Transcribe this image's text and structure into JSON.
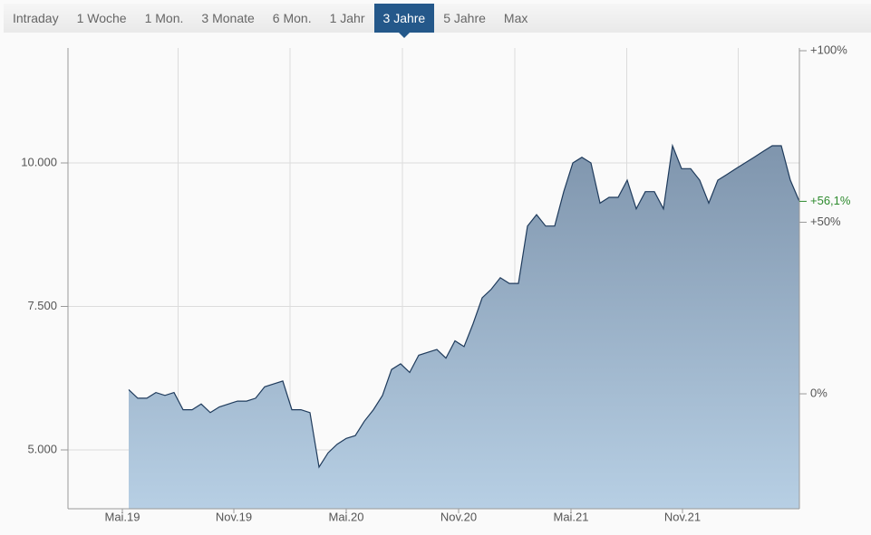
{
  "tabs": [
    "Intraday",
    "1 Woche",
    "1 Mon.",
    "3 Monate",
    "6 Mon.",
    "1 Jahr",
    "3 Jahre",
    "5 Jahre",
    "Max"
  ],
  "active_tab": 6,
  "chart_data": {
    "type": "area",
    "series": [
      {
        "color": "#1f3b5c",
        "fill": "#9fb6cc",
        "values": [
          6050,
          5900,
          5900,
          6000,
          5950,
          6000,
          5700,
          5700,
          5800,
          5650,
          5750,
          5800,
          5850,
          5850,
          5900,
          6100,
          6150,
          6200,
          5700,
          5700,
          5650,
          4700,
          4950,
          5100,
          5200,
          5250,
          5500,
          5700,
          5950,
          6400,
          6500,
          6350,
          6650,
          6700,
          6750,
          6600,
          6900,
          6800,
          7200,
          7650,
          7800,
          8000,
          7900,
          7900,
          8900,
          9100,
          8900,
          8900,
          9500,
          10000,
          10100,
          10000,
          9300,
          9400,
          9400,
          9700,
          9200,
          9500,
          9500,
          9200,
          10300,
          9900,
          9900,
          9700,
          9300,
          9700,
          9800,
          9900,
          10000,
          10100,
          10200,
          10300,
          10300,
          9700,
          9330
        ]
      }
    ],
    "xlim": [
      -6.7,
      74
    ],
    "xticks": [
      {
        "value": -0.7,
        "label": "Mai.19"
      },
      {
        "value": 11.6,
        "label": "Nov.19"
      },
      {
        "value": 24,
        "label": "Mai.20"
      },
      {
        "value": 36.4,
        "label": "Nov.20"
      },
      {
        "value": 48.8,
        "label": "Mai.21"
      },
      {
        "value": 61.1,
        "label": "Nov.21"
      }
    ],
    "ylim": [
      3975,
      12003
    ],
    "yticks": [
      {
        "value": 5000,
        "label": "5.000"
      },
      {
        "value": 7500,
        "label": "7.500"
      },
      {
        "value": 10000,
        "label": "10.000"
      }
    ],
    "y2lim": [
      -33.5,
      100.8
    ],
    "y2ticks": [
      {
        "value": 0,
        "label": "0%"
      },
      {
        "value": 50,
        "label": "+50%"
      },
      {
        "value": 100,
        "label": "+100%"
      }
    ],
    "annotation": {
      "value": 56.1,
      "label": "+56,1%",
      "color": "#2e8b2e"
    },
    "grid": true
  }
}
